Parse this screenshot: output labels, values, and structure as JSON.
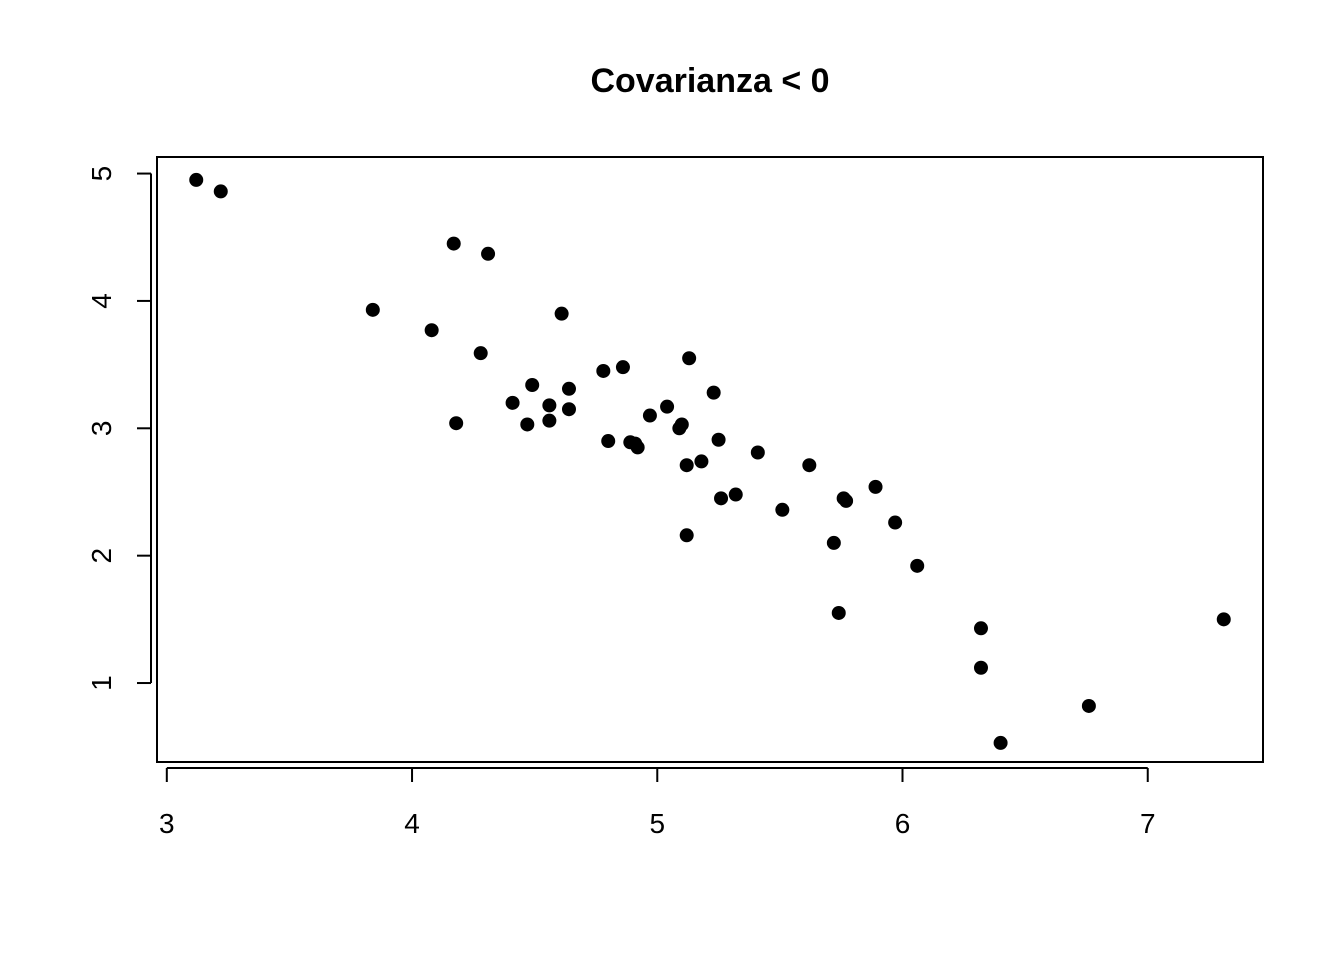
{
  "chart_data": {
    "type": "scatter",
    "title": "Covarianza < 0",
    "xlabel": "",
    "ylabel": "",
    "xlim": [
      2.96,
      7.47
    ],
    "ylim": [
      0.38,
      5.13
    ],
    "x_ticks": [
      3,
      4,
      5,
      6,
      7
    ],
    "y_ticks": [
      1,
      2,
      3,
      4,
      5
    ],
    "grid": false,
    "point_color": "#000000",
    "points": [
      [
        3.12,
        4.95
      ],
      [
        3.22,
        4.86
      ],
      [
        4.17,
        4.45
      ],
      [
        4.31,
        4.37
      ],
      [
        3.84,
        3.93
      ],
      [
        4.61,
        3.9
      ],
      [
        4.08,
        3.77
      ],
      [
        4.28,
        3.59
      ],
      [
        4.18,
        3.04
      ],
      [
        4.41,
        3.2
      ],
      [
        4.49,
        3.34
      ],
      [
        4.47,
        3.03
      ],
      [
        4.56,
        3.18
      ],
      [
        4.56,
        3.06
      ],
      [
        4.64,
        3.31
      ],
      [
        4.64,
        3.15
      ],
      [
        4.78,
        3.45
      ],
      [
        4.86,
        3.48
      ],
      [
        4.8,
        2.9
      ],
      [
        4.89,
        2.89
      ],
      [
        4.91,
        2.88
      ],
      [
        4.92,
        2.85
      ],
      [
        4.97,
        3.1
      ],
      [
        5.04,
        3.17
      ],
      [
        5.09,
        3.0
      ],
      [
        5.1,
        3.03
      ],
      [
        5.13,
        3.55
      ],
      [
        5.23,
        3.28
      ],
      [
        5.25,
        2.91
      ],
      [
        5.12,
        2.71
      ],
      [
        5.18,
        2.74
      ],
      [
        5.26,
        2.45
      ],
      [
        5.32,
        2.48
      ],
      [
        5.12,
        2.16
      ],
      [
        5.41,
        2.81
      ],
      [
        5.51,
        2.36
      ],
      [
        5.62,
        2.71
      ],
      [
        5.72,
        2.1
      ],
      [
        5.76,
        2.45
      ],
      [
        5.77,
        2.43
      ],
      [
        5.89,
        2.54
      ],
      [
        5.97,
        2.26
      ],
      [
        6.06,
        1.92
      ],
      [
        5.74,
        1.55
      ],
      [
        6.32,
        1.43
      ],
      [
        6.32,
        1.12
      ],
      [
        6.4,
        0.53
      ],
      [
        6.76,
        0.82
      ],
      [
        7.31,
        1.5
      ]
    ]
  }
}
